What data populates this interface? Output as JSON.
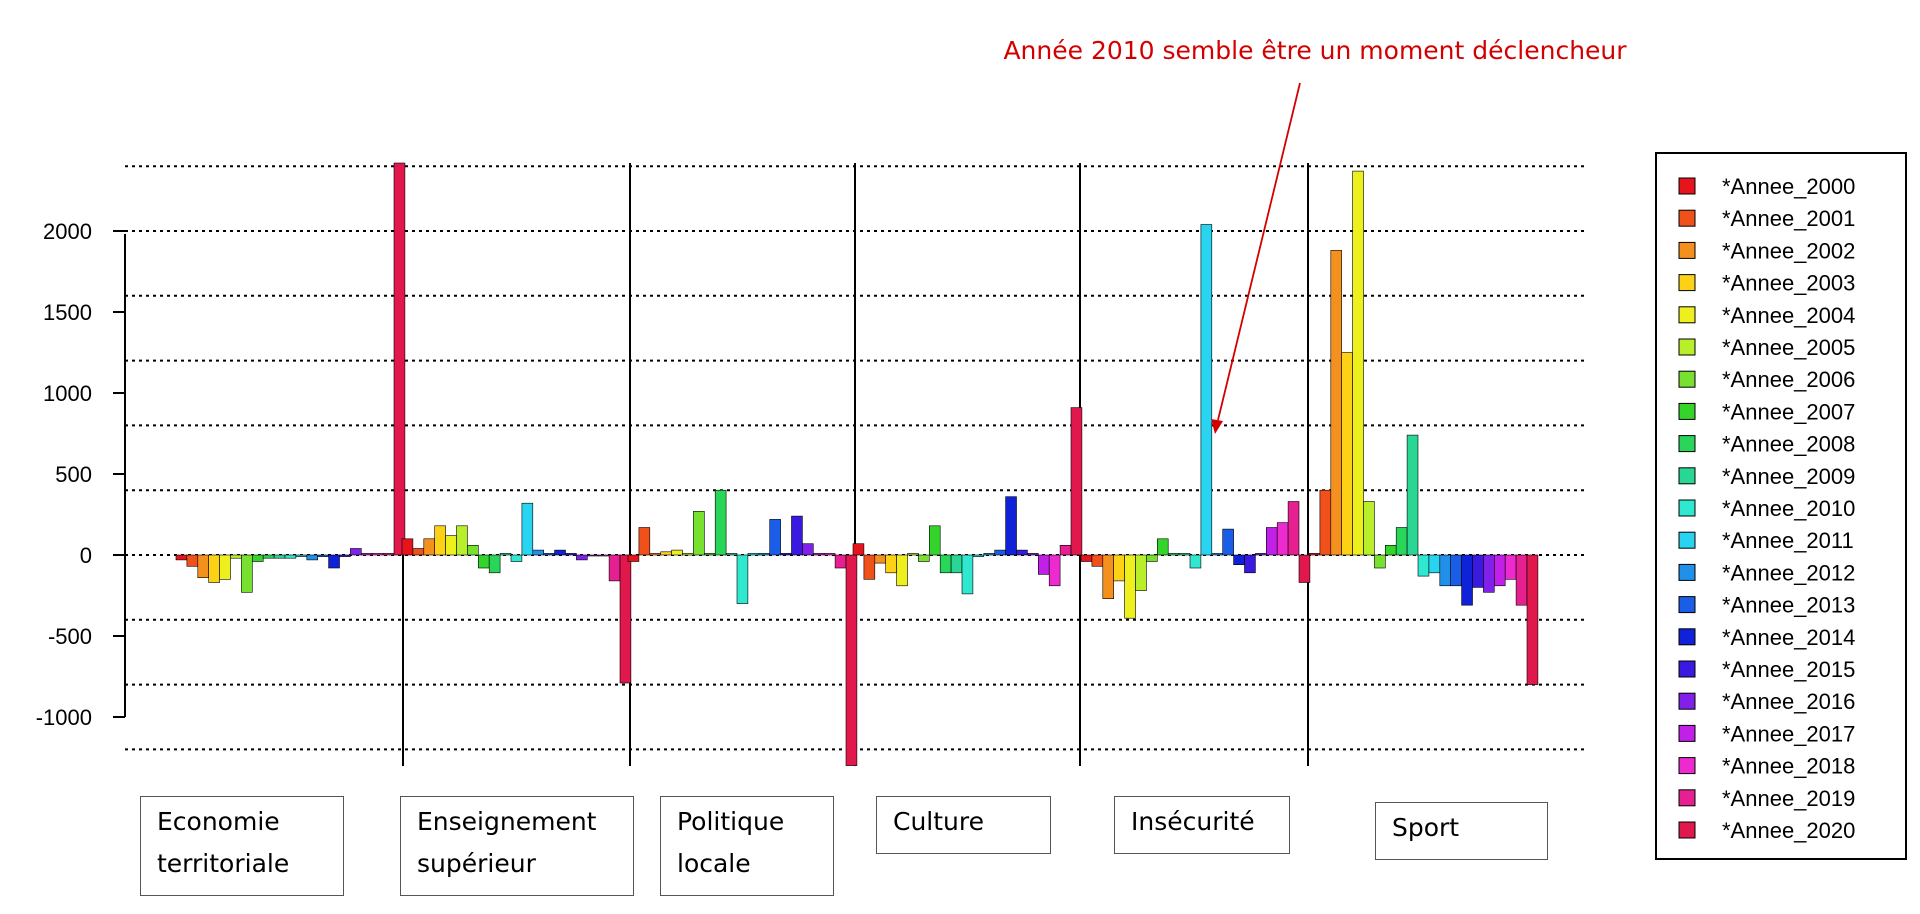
{
  "chart_data": {
    "type": "bar",
    "annotation": "Année 2010 semble être un moment déclencheur",
    "y_ticks": [
      2000,
      1500,
      1000,
      500,
      0,
      -500,
      -1000
    ],
    "ylim": [
      -1320,
      2420
    ],
    "gridlines": [
      2400,
      2000,
      1600,
      1200,
      800,
      400,
      0,
      -400,
      -800,
      -1200
    ],
    "grid": true,
    "legend_position": "right",
    "categories": [
      "Economie territoriale",
      "Enseignement supérieur",
      "Politique locale",
      "Culture",
      "Insécurité",
      "Sport"
    ],
    "series": [
      {
        "name": "*Annee_2000",
        "color": "#e8141b"
      },
      {
        "name": "*Annee_2001",
        "color": "#f0501a"
      },
      {
        "name": "*Annee_2002",
        "color": "#f4901e"
      },
      {
        "name": "*Annee_2003",
        "color": "#fcd116"
      },
      {
        "name": "*Annee_2004",
        "color": "#eef01e"
      },
      {
        "name": "*Annee_2005",
        "color": "#b8ef2a"
      },
      {
        "name": "*Annee_2006",
        "color": "#78e02e"
      },
      {
        "name": "*Annee_2007",
        "color": "#34d42a"
      },
      {
        "name": "*Annee_2008",
        "color": "#2ad65a"
      },
      {
        "name": "*Annee_2009",
        "color": "#2ad694"
      },
      {
        "name": "*Annee_2010",
        "color": "#30e8d0"
      },
      {
        "name": "*Annee_2011",
        "color": "#28d4f0"
      },
      {
        "name": "*Annee_2012",
        "color": "#2090e8"
      },
      {
        "name": "*Annee_2013",
        "color": "#1a5ee8"
      },
      {
        "name": "*Annee_2014",
        "color": "#1022d8"
      },
      {
        "name": "*Annee_2015",
        "color": "#3a1ae0"
      },
      {
        "name": "*Annee_2016",
        "color": "#8020e8"
      },
      {
        "name": "*Annee_2017",
        "color": "#c020e8"
      },
      {
        "name": "*Annee_2018",
        "color": "#ec2ad0"
      },
      {
        "name": "*Annee_2019",
        "color": "#e62090"
      },
      {
        "name": "*Annee_2020",
        "color": "#e0184c"
      }
    ],
    "values": [
      [
        -30,
        -70,
        -140,
        -170,
        -150,
        -20,
        -230,
        -40,
        -20,
        -20,
        -20,
        -10,
        -30,
        -10,
        -80,
        -10,
        40,
        10,
        10,
        10,
        2420
      ],
      [
        100,
        40,
        100,
        180,
        120,
        180,
        60,
        -80,
        -110,
        10,
        -40,
        320,
        30,
        10,
        30,
        10,
        -30,
        0,
        0,
        -160,
        -790
      ],
      [
        -40,
        170,
        10,
        20,
        30,
        10,
        270,
        10,
        400,
        10,
        -300,
        10,
        10,
        220,
        10,
        240,
        70,
        10,
        10,
        -80,
        -1300
      ],
      [
        70,
        -150,
        -50,
        -110,
        -190,
        10,
        -40,
        180,
        -110,
        -110,
        -240,
        -10,
        10,
        30,
        360,
        30,
        10,
        -120,
        -190,
        60,
        910
      ],
      [
        -40,
        -70,
        -270,
        -160,
        -390,
        -220,
        -40,
        100,
        10,
        10,
        -80,
        2040,
        10,
        160,
        -60,
        -110,
        10,
        170,
        200,
        330,
        -170
      ],
      [
        10,
        400,
        1880,
        1250,
        2370,
        330,
        -80,
        60,
        170,
        740,
        -130,
        -110,
        -190,
        -190,
        -310,
        -200,
        -230,
        -190,
        -150,
        -310,
        -800
      ]
    ]
  }
}
